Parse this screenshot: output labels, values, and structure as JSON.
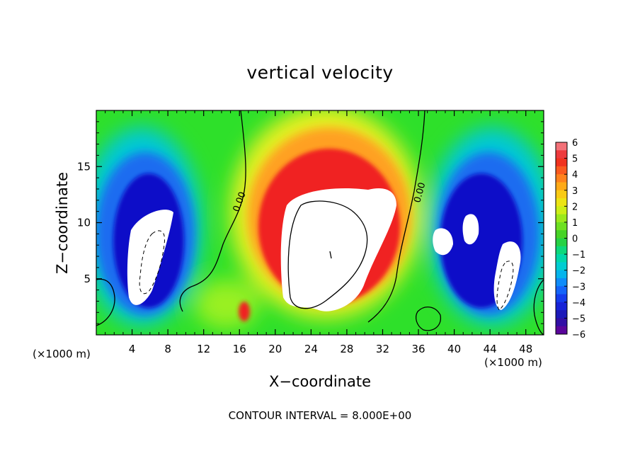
{
  "chart_data": {
    "type": "heatmap",
    "title": "vertical velocity",
    "xlabel": "X−coordinate",
    "ylabel": "Z−coordinate",
    "x_unit": "(×1000 m)",
    "xlim": [
      0,
      50
    ],
    "ylim": [
      0,
      20
    ],
    "x_ticks": [
      4,
      8,
      12,
      16,
      20,
      24,
      28,
      32,
      36,
      40,
      44,
      48
    ],
    "y_ticks": [
      5,
      10,
      15
    ],
    "colorbar": {
      "ticks": [
        6,
        5,
        4,
        3,
        2,
        1,
        0,
        -1,
        -2,
        -3,
        -4,
        -5,
        -6
      ],
      "tick_labels": [
        "6",
        "5",
        "4",
        "3",
        "2",
        "1",
        "0",
        "−1",
        "−2",
        "−3",
        "−4",
        "−5",
        "−6"
      ],
      "range": [
        -6,
        6
      ]
    },
    "contour_label": "0.00",
    "contour_interval": "CONTOUR INTERVAL = 8.000E+00",
    "features": [
      {
        "kind": "updraft",
        "center": [
          26,
          8.5
        ],
        "peak": "> 6"
      },
      {
        "kind": "downdraft",
        "center": [
          6.5,
          7
        ],
        "peak": "< -6"
      },
      {
        "kind": "downdraft",
        "center": [
          44,
          7
        ],
        "peak": "< -6"
      }
    ]
  }
}
